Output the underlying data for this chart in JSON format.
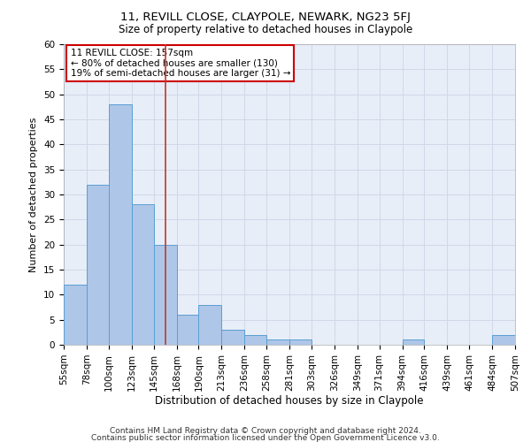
{
  "title1": "11, REVILL CLOSE, CLAYPOLE, NEWARK, NG23 5FJ",
  "title2": "Size of property relative to detached houses in Claypole",
  "xlabel": "Distribution of detached houses by size in Claypole",
  "ylabel": "Number of detached properties",
  "footer1": "Contains HM Land Registry data © Crown copyright and database right 2024.",
  "footer2": "Contains public sector information licensed under the Open Government Licence v3.0.",
  "bin_edges": [
    55,
    78,
    100,
    123,
    145,
    168,
    190,
    213,
    236,
    258,
    281,
    303,
    326,
    349,
    371,
    394,
    416,
    439,
    461,
    484,
    507
  ],
  "bin_labels": [
    "55sqm",
    "78sqm",
    "100sqm",
    "123sqm",
    "145sqm",
    "168sqm",
    "190sqm",
    "213sqm",
    "236sqm",
    "258sqm",
    "281sqm",
    "303sqm",
    "326sqm",
    "349sqm",
    "371sqm",
    "394sqm",
    "416sqm",
    "439sqm",
    "461sqm",
    "484sqm",
    "507sqm"
  ],
  "values": [
    12,
    32,
    48,
    28,
    20,
    6,
    8,
    3,
    2,
    1,
    1,
    0,
    0,
    0,
    0,
    1,
    0,
    0,
    0,
    2
  ],
  "bar_color": "#aec6e8",
  "bar_edge_color": "#5a9fd4",
  "grid_color": "#d0d8e8",
  "property_line_x": 157,
  "property_line_color": "#c0392b",
  "annotation_line1": "11 REVILL CLOSE: 157sqm",
  "annotation_line2": "← 80% of detached houses are smaller (130)",
  "annotation_line3": "19% of semi-detached houses are larger (31) →",
  "annotation_box_color": "#ffffff",
  "annotation_box_edge": "#cc0000",
  "ylim": [
    0,
    60
  ],
  "yticks": [
    0,
    5,
    10,
    15,
    20,
    25,
    30,
    35,
    40,
    45,
    50,
    55,
    60
  ],
  "background_color": "#e8eef8",
  "fig_background": "#ffffff",
  "title1_fontsize": 9.5,
  "title2_fontsize": 8.5,
  "xlabel_fontsize": 8.5,
  "ylabel_fontsize": 8,
  "tick_fontsize": 7.5,
  "annotation_fontsize": 7.5,
  "footer_fontsize": 6.5
}
